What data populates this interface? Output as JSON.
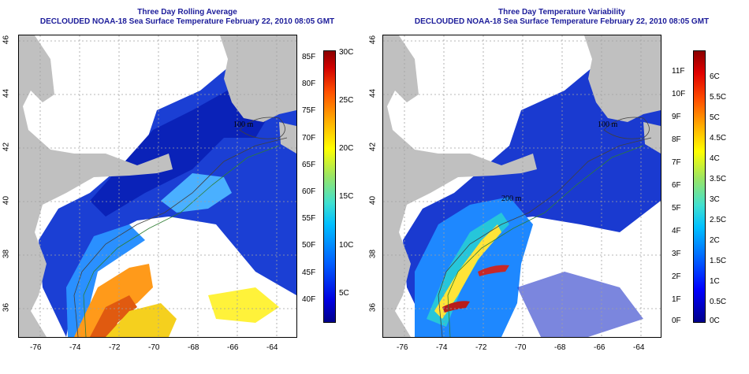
{
  "left_panel": {
    "title_line1": "Three Day Rolling Average",
    "title_line2": "DECLOUDED NOAA-18 Sea Surface Temperature February 22, 2010 08:05 GMT",
    "contour_labels": [
      "100 m",
      "200 m"
    ],
    "colorbar_f_labels": [
      "85F",
      "80F",
      "75F",
      "70F",
      "65F",
      "60F",
      "55F",
      "50F",
      "45F",
      "40F"
    ],
    "colorbar_c_labels": [
      "30C",
      "25C",
      "20C",
      "15C",
      "10C",
      "5C"
    ]
  },
  "right_panel": {
    "title_line1": "Three Day Temperature Variability",
    "title_line2": "DECLOUDED NOAA-18 Sea Surface Temperature February 22, 2010 08:05 GMT",
    "contour_labels": [
      "100 m",
      "200 m"
    ],
    "colorbar_f_labels": [
      "11F",
      "10F",
      "9F",
      "8F",
      "7F",
      "6F",
      "5F",
      "4F",
      "3F",
      "2F",
      "1F",
      "0F"
    ],
    "colorbar_c_labels": [
      "6C",
      "5.5C",
      "5C",
      "4.5C",
      "4C",
      "3.5C",
      "3C",
      "2.5C",
      "2C",
      "1.5C",
      "1C",
      "0.5C",
      "0C"
    ]
  },
  "axes": {
    "lon_ticks": [
      "-76",
      "-74",
      "-72",
      "-70",
      "-68",
      "-66",
      "-64"
    ],
    "lat_ticks": [
      "36",
      "38",
      "40",
      "42",
      "44",
      "46"
    ]
  },
  "colors": {
    "land": "#c0c0c0",
    "title": "#1c1c9a",
    "grid": "#a0a0a0",
    "no_data": "#ffffff"
  }
}
